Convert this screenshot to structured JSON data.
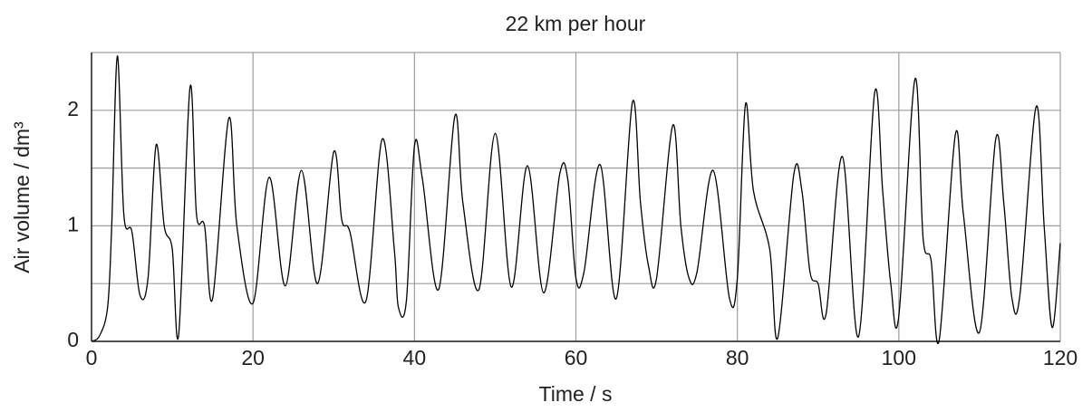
{
  "chart_data": {
    "type": "line",
    "title": "22 km per hour",
    "x_label": "Time / s",
    "y_label": "Air volume / dm³",
    "xlim": [
      0,
      120
    ],
    "xticks": [
      0,
      20,
      40,
      60,
      80,
      100,
      120
    ],
    "ylim": [
      0,
      2.5
    ],
    "yticks": [
      0,
      1,
      2
    ],
    "y_grid_lines": [
      0.5,
      1.5,
      2.5
    ],
    "grid": true,
    "series": [
      {
        "color": "#000000",
        "x": [
          0,
          1,
          2,
          2.5,
          3.2,
          4,
          5,
          6,
          7,
          8,
          9,
          10,
          10.8,
          12.2,
          13,
          14,
          15,
          17,
          18,
          20,
          22,
          24,
          26,
          28,
          30,
          31,
          32,
          34,
          36,
          37.5,
          38,
          39,
          40,
          41,
          43,
          45,
          46,
          48,
          50,
          52,
          54,
          56,
          58,
          59,
          60,
          61,
          63,
          65,
          67,
          68,
          69,
          70,
          72,
          73,
          74,
          75,
          77,
          79,
          80,
          81,
          82,
          84,
          85,
          87,
          88,
          89,
          90,
          91,
          93,
          95,
          97,
          98,
          99,
          100,
          102,
          103,
          104,
          105,
          107,
          108,
          110,
          112,
          113,
          114,
          115,
          117,
          118,
          119,
          120
        ],
        "values": [
          0,
          0.05,
          0.3,
          1.0,
          2.47,
          1.1,
          0.95,
          0.4,
          0.55,
          1.7,
          1.0,
          0.8,
          0.06,
          2.2,
          1.1,
          1.0,
          0.37,
          1.93,
          1.0,
          0.33,
          1.42,
          0.48,
          1.48,
          0.5,
          1.64,
          1.05,
          0.95,
          0.35,
          1.75,
          0.8,
          0.3,
          0.35,
          1.69,
          1.4,
          0.45,
          1.95,
          1.2,
          0.45,
          1.8,
          0.47,
          1.52,
          0.42,
          1.45,
          1.4,
          0.55,
          0.6,
          1.53,
          0.37,
          2.07,
          1.2,
          0.65,
          0.55,
          1.87,
          1.0,
          0.55,
          0.6,
          1.48,
          0.38,
          0.55,
          2.05,
          1.3,
          0.8,
          0.03,
          1.45,
          1.3,
          0.6,
          0.5,
          0.24,
          1.6,
          0.04,
          2.15,
          1.3,
          0.5,
          0.22,
          2.27,
          0.9,
          0.7,
          0.01,
          1.79,
          1.1,
          0.08,
          1.75,
          1.2,
          0.38,
          0.4,
          2.03,
          1.0,
          0.12,
          0.85
        ]
      }
    ]
  }
}
